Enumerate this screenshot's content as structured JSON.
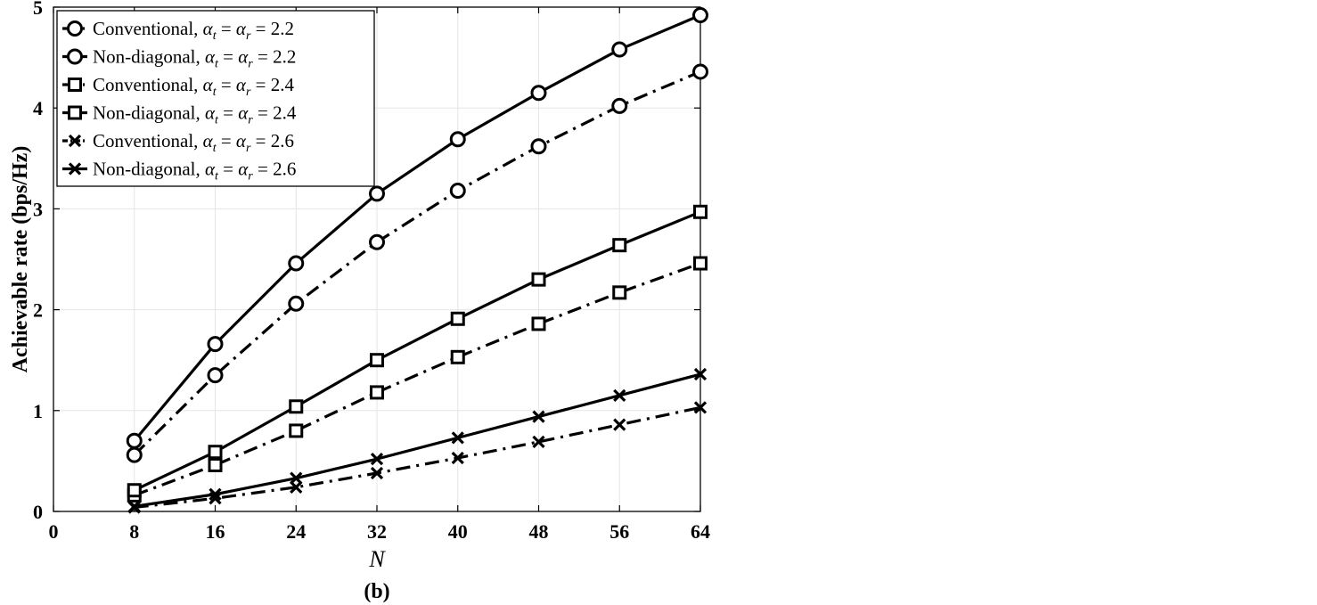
{
  "chart_data": {
    "type": "line",
    "title": "",
    "caption": "(b)",
    "xlabel": "N",
    "ylabel": "Achievable rate (bps/Hz)",
    "xlim": [
      0,
      64
    ],
    "ylim": [
      0,
      5
    ],
    "xticks": [
      0,
      8,
      16,
      24,
      32,
      40,
      48,
      56,
      64
    ],
    "yticks": [
      0,
      1,
      2,
      3,
      4,
      5
    ],
    "grid": true,
    "legend_position": "top-left",
    "x": [
      8,
      16,
      24,
      32,
      40,
      48,
      56,
      64
    ],
    "series": [
      {
        "name": "Conventional, α_t = α_r = 2.2",
        "label_prefix": "Conventional, ",
        "alpha": "2.2",
        "marker": "circle",
        "linestyle": "dashdot",
        "values": [
          0.56,
          1.35,
          2.06,
          2.67,
          3.18,
          3.62,
          4.02,
          4.36
        ]
      },
      {
        "name": "Non-diagonal, α_t = α_r = 2.2",
        "label_prefix": "Non-diagonal, ",
        "alpha": "2.2",
        "marker": "circle",
        "linestyle": "solid",
        "values": [
          0.7,
          1.66,
          2.46,
          3.15,
          3.69,
          4.15,
          4.58,
          4.92
        ]
      },
      {
        "name": "Conventional, α_t = α_r = 2.4",
        "label_prefix": "Conventional, ",
        "alpha": "2.4",
        "marker": "square",
        "linestyle": "dashdot",
        "values": [
          0.16,
          0.46,
          0.8,
          1.18,
          1.53,
          1.86,
          2.17,
          2.46
        ]
      },
      {
        "name": "Non-diagonal, α_t = α_r = 2.4",
        "label_prefix": "Non-diagonal, ",
        "alpha": "2.4",
        "marker": "square",
        "linestyle": "solid",
        "values": [
          0.21,
          0.59,
          1.04,
          1.5,
          1.91,
          2.3,
          2.64,
          2.97
        ]
      },
      {
        "name": "Conventional, α_t = α_r = 2.6",
        "label_prefix": "Conventional, ",
        "alpha": "2.6",
        "marker": "x",
        "linestyle": "dashdot",
        "values": [
          0.04,
          0.13,
          0.24,
          0.38,
          0.53,
          0.69,
          0.86,
          1.03
        ]
      },
      {
        "name": "Non-diagonal, α_t = α_r = 2.6",
        "label_prefix": "Non-diagonal, ",
        "alpha": "2.6",
        "marker": "x",
        "linestyle": "solid",
        "values": [
          0.05,
          0.17,
          0.33,
          0.52,
          0.73,
          0.94,
          1.15,
          1.36
        ]
      }
    ],
    "colors": {
      "line": "#000000",
      "grid": "#e6e6e6",
      "background": "#ffffff"
    }
  }
}
